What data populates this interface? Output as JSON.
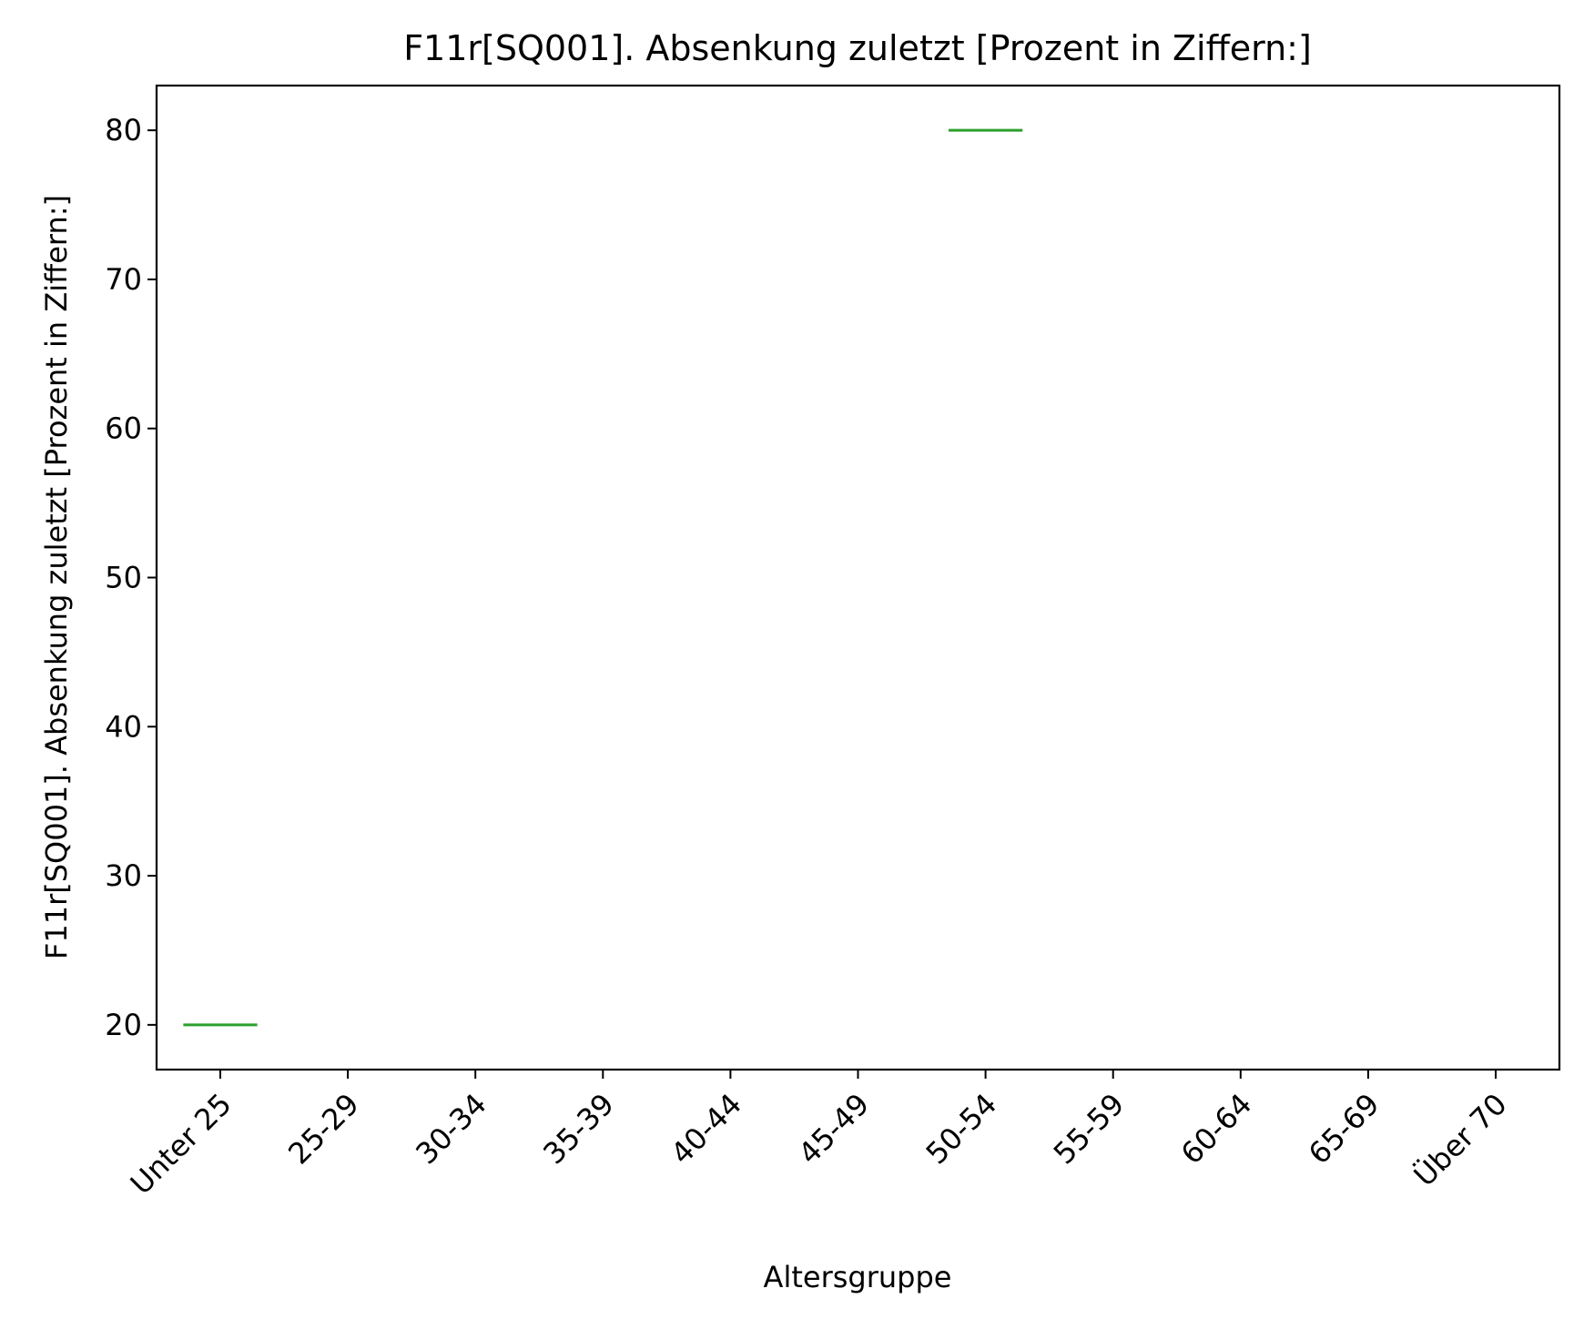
{
  "chart_data": {
    "type": "box",
    "title": "F11r[SQ001]. Absenkung zuletzt [Prozent in Ziffern:]",
    "xlabel": "Altersgruppe",
    "ylabel": "F11r[SQ001]. Absenkung zuletzt [Prozent in Ziffern:]",
    "categories": [
      "Unter 25",
      "25-29",
      "30-34",
      "35-39",
      "40-44",
      "45-49",
      "50-54",
      "55-59",
      "60-64",
      "65-69",
      "Über 70"
    ],
    "values": [
      20,
      null,
      null,
      null,
      null,
      null,
      80,
      null,
      null,
      null,
      null
    ],
    "yticks": [
      20,
      30,
      40,
      50,
      60,
      70,
      80
    ],
    "ylim": [
      17,
      83
    ],
    "grid": false,
    "colors": {
      "median": "#2ca02c",
      "axis": "#000000"
    }
  }
}
